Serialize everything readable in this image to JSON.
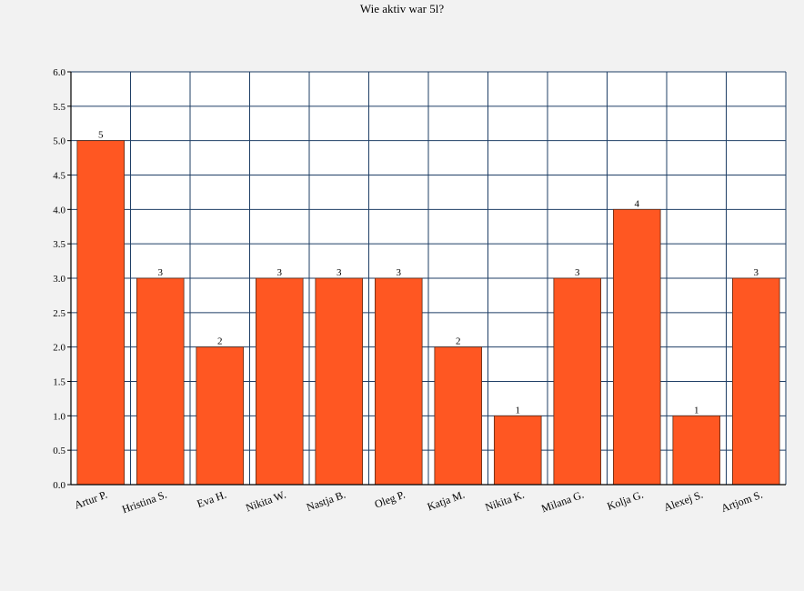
{
  "chart_data": {
    "type": "bar",
    "title": "Wie aktiv war 5l?",
    "categories": [
      "Artur P.",
      "Hristina S.",
      "Eva H.",
      "Nikita W.",
      "Nastja B.",
      "Oleg P.",
      "Katja M.",
      "Nikita K.",
      "Milana G.",
      "Kolja G.",
      "Alexej S.",
      "Artjom S."
    ],
    "values": [
      5,
      3,
      2,
      3,
      3,
      3,
      2,
      1,
      3,
      4,
      1,
      3
    ],
    "ylim": [
      0,
      6
    ],
    "yticks": [
      "0.0",
      "0.5",
      "1.0",
      "1.5",
      "2.0",
      "2.5",
      "3.0",
      "3.5",
      "4.0",
      "4.5",
      "5.0",
      "5.5",
      "6.0"
    ],
    "data_labels": [
      "5",
      "3",
      "2",
      "3",
      "3",
      "3",
      "2",
      "1",
      "3",
      "4",
      "1",
      "3"
    ],
    "grid": true,
    "colors": {
      "bar": "#ff5722",
      "bar_edge": "#5a2a16",
      "grid": "#1f3f66",
      "plot_bg": "#ffffff",
      "page_bg": "#f2f2f2"
    }
  }
}
